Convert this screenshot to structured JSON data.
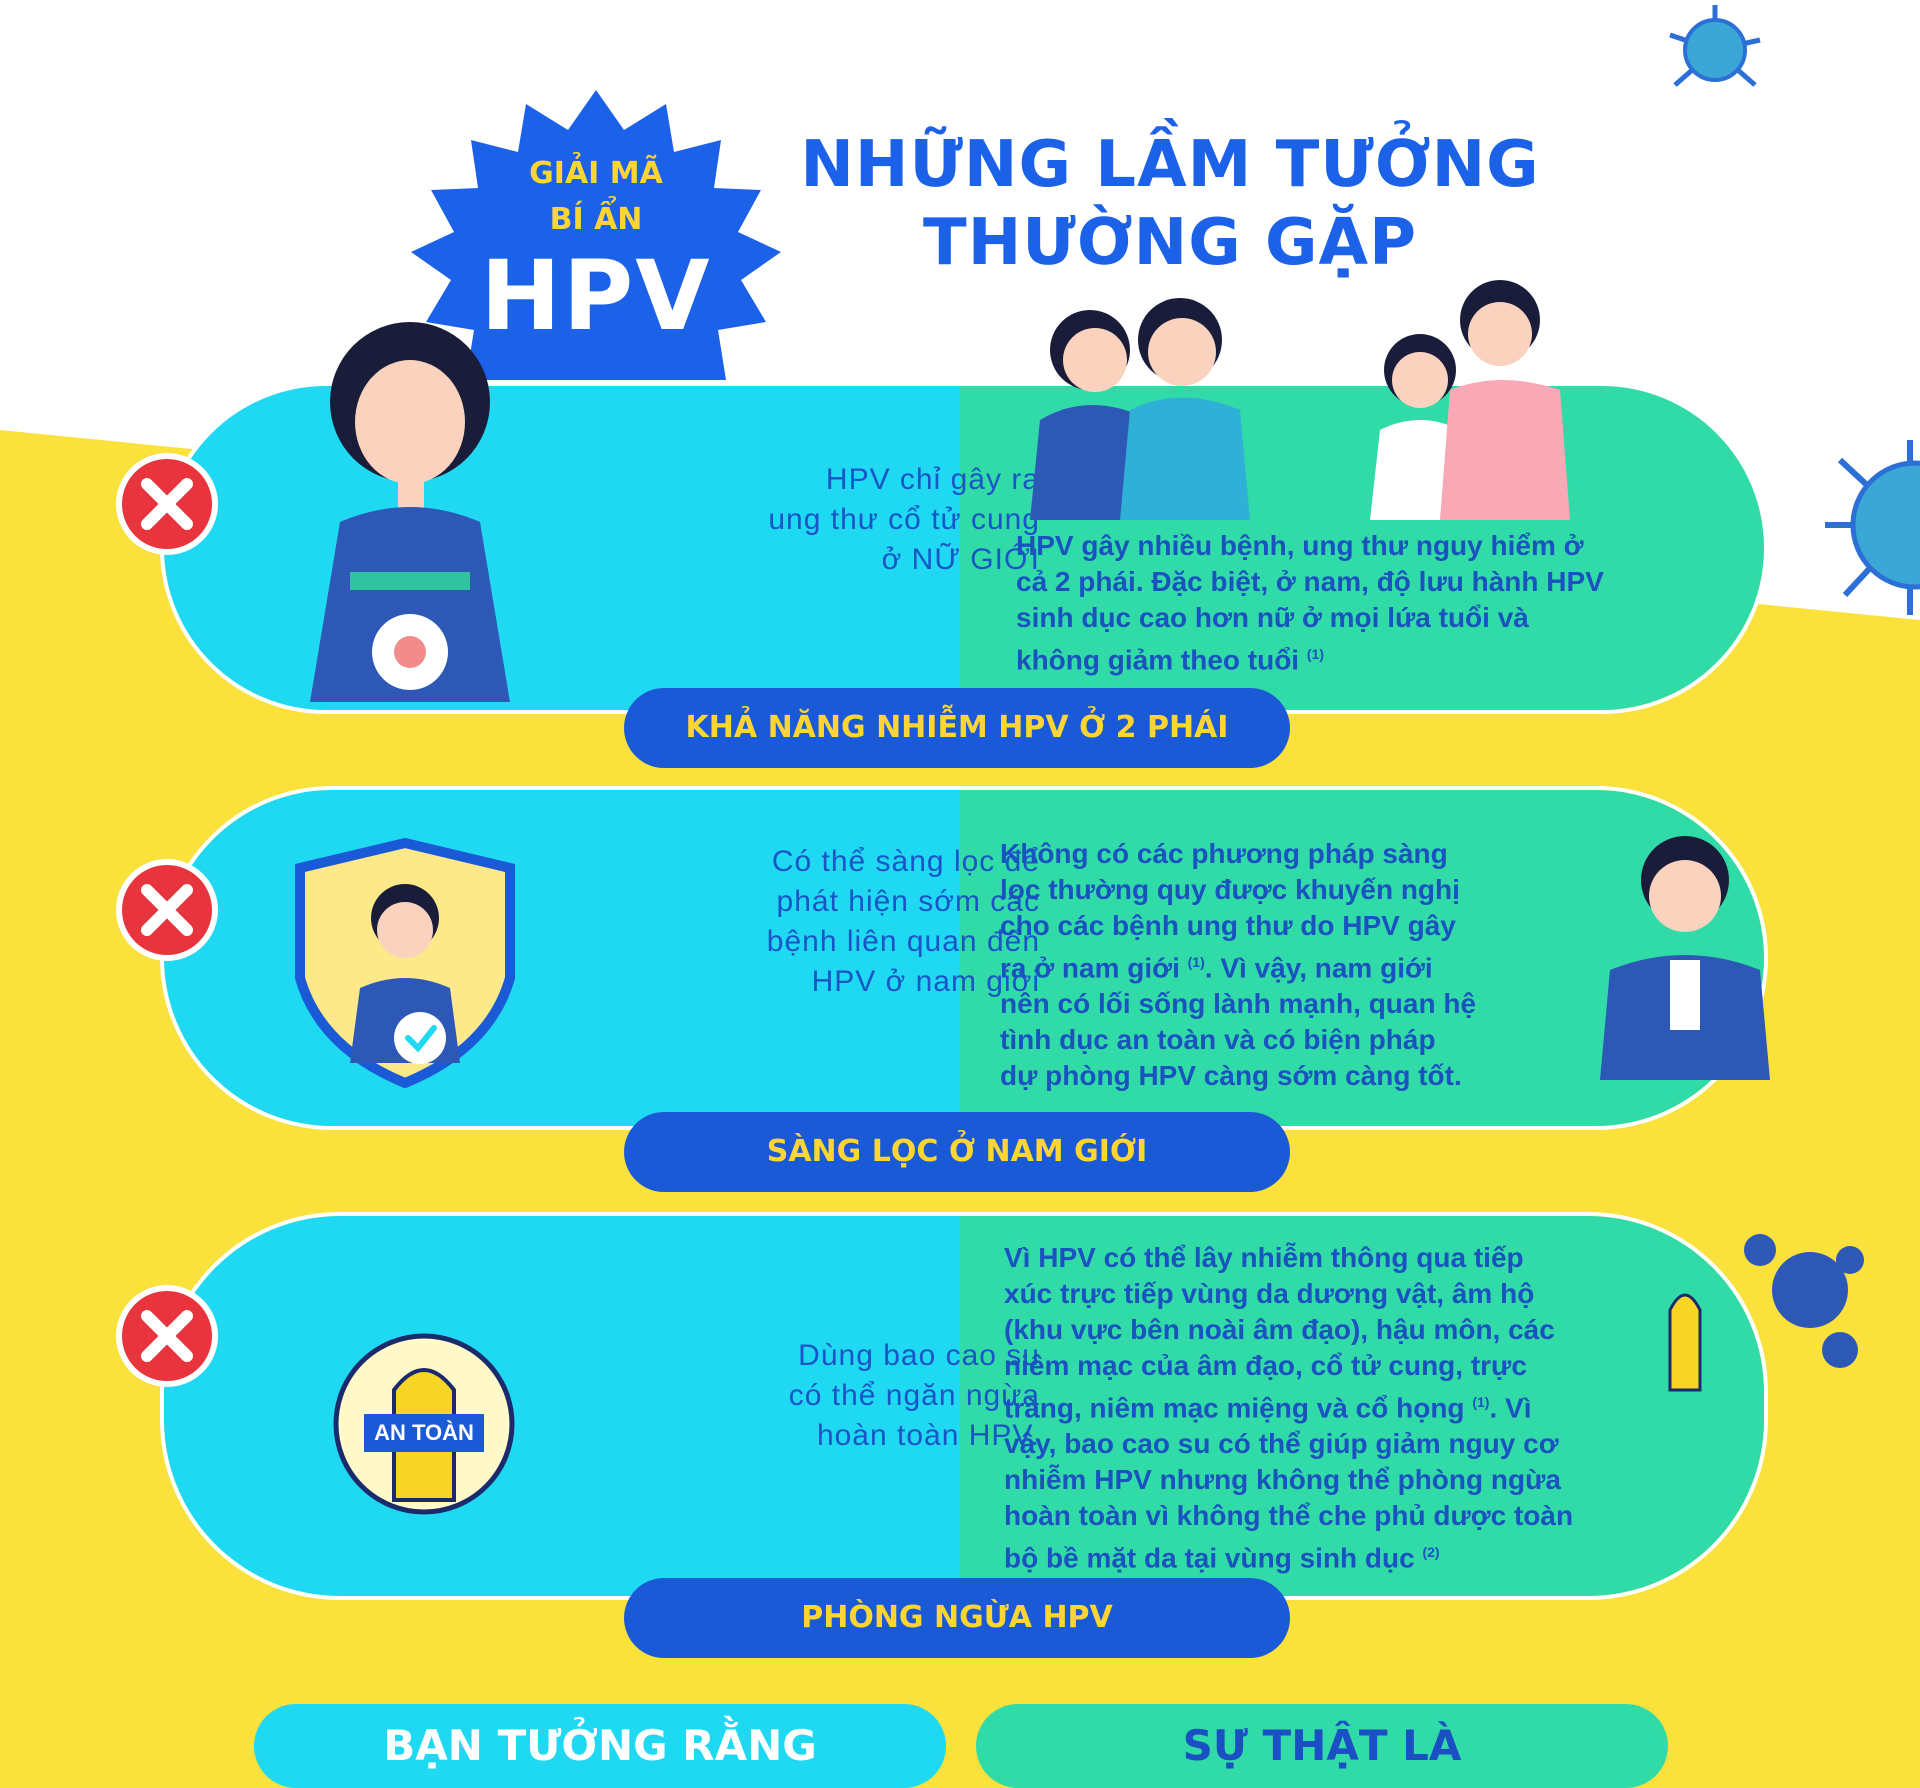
{
  "badge": {
    "line1": "GIẢI MÃ",
    "line2": "BÍ ẨN",
    "hpv": "HPV"
  },
  "title": {
    "line1": "NHỮNG LẦM TƯỞNG",
    "line2": "THƯỜNG GẶP"
  },
  "rows": [
    {
      "myth": [
        "HPV chỉ gây ra",
        "ung thư cổ tử cung",
        "ở NỮ GIỚI"
      ],
      "fact": [
        "HPV gây nhiều bệnh, ung thư nguy hiểm ở",
        "cả 2 phái. Đặc biệt, ở nam, độ lưu hành HPV",
        "sinh dục cao hơn nữ ở mọi lứa tuổi và",
        "không giảm theo tuổi"
      ],
      "fact_ref": "(1)",
      "label": "KHẢ NĂNG NHIỄM HPV Ở 2 PHÁI"
    },
    {
      "myth": [
        "Có thể sàng lọc để",
        "phát hiện sớm các",
        "bệnh liên quan đến",
        "HPV ở nam giới"
      ],
      "fact": [
        "Không có các phương pháp sàng",
        "lọc thường quy được khuyến nghị",
        "cho các bệnh ung thư do HPV gây",
        "ra ở nam giới",
        ". Vì vậy, nam giới",
        "nên có lối sống lành mạnh, quan hệ",
        "tình dục an toàn và có biện pháp",
        "dự phòng HPV càng sớm càng tốt."
      ],
      "fact_ref": "(1)",
      "label": "SÀNG LỌC Ở NAM GIỚI"
    },
    {
      "myth": [
        "Dùng bao cao su",
        "có thể ngăn ngừa",
        "hoàn toàn HPV."
      ],
      "fact": [
        "Vì HPV có thể lây nhiễm thông qua tiếp",
        "xúc trực tiếp vùng da dương vật, âm hộ",
        "(khu vực bên noài âm đạo), hậu môn, các",
        "niêm mạc của âm đạo, cổ tử cung, trực",
        "tràng, niêm mạc miệng và cổ họng",
        ". Vì",
        "vậy, bao cao su có thể giúp giảm nguy cơ",
        "nhiễm HPV nhưng không thể phòng ngừa",
        "hoàn toàn vì không thể che phủ dược toàn",
        "bộ bề mặt da tại vùng sinh dục"
      ],
      "fact_ref": "(1)",
      "fact_ref2": "(2)",
      "label": "PHÒNG NGỪA HPV",
      "condom_label": "AN TOÀN"
    }
  ],
  "bottom": {
    "left": "BẠN TƯỞNG RẰNG",
    "right": "SỰ THẬT LÀ"
  },
  "colors": {
    "yellow": "#fae13c",
    "cyan": "#1fd8f2",
    "green": "#31dba7",
    "blue": "#1b5ad6",
    "red": "#e8343c"
  }
}
